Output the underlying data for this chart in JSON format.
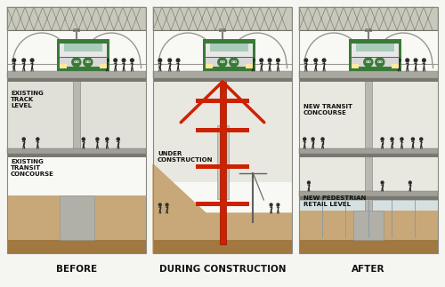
{
  "bg_color": "#f5f5f2",
  "title_labels": [
    "BEFORE",
    "DURING CONSTRUCTION",
    "AFTER"
  ],
  "title_fontsize": 7.5,
  "label_fontsize": 5.0,
  "soil_color": "#c8a878",
  "soil_dark": "#a07840",
  "red_color": "#cc2200",
  "train_green": "#3a7a38",
  "panel_border": "#888880",
  "col_color": "#a8a8a0",
  "floor_color": "#909088",
  "floor_dark": "#6a6a62",
  "roof_truss_color": "#b0b0a0",
  "arch_color": "#989890",
  "white_interior": "#f8f8f4",
  "concourse_bg": "#e8e8e0",
  "glass_color": "#d0dde0"
}
